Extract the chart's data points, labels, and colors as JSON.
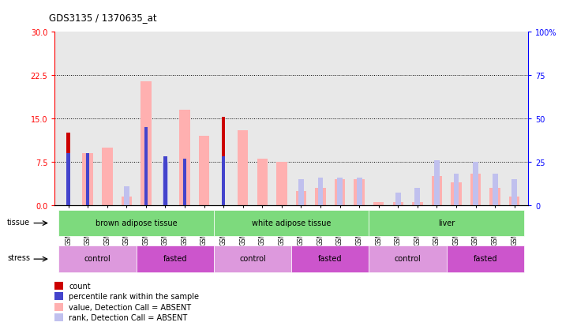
{
  "title": "GDS3135 / 1370635_at",
  "samples": [
    "GSM184414",
    "GSM184415",
    "GSM184416",
    "GSM184417",
    "GSM184418",
    "GSM184419",
    "GSM184420",
    "GSM184421",
    "GSM184422",
    "GSM184423",
    "GSM184424",
    "GSM184425",
    "GSM184426",
    "GSM184427",
    "GSM184428",
    "GSM184429",
    "GSM184430",
    "GSM184431",
    "GSM184432",
    "GSM184433",
    "GSM184434",
    "GSM184435",
    "GSM184436",
    "GSM184437"
  ],
  "count": [
    12.5,
    0,
    0,
    0,
    0,
    0,
    0,
    0,
    15.3,
    0,
    0,
    0,
    0,
    0,
    0,
    0,
    0,
    0,
    0,
    0,
    0,
    0,
    0,
    0
  ],
  "percentile_rank_pct": [
    30,
    30,
    0,
    0,
    45,
    28,
    27,
    0,
    28,
    0,
    0,
    0,
    0,
    0,
    0,
    0,
    0,
    0,
    0,
    0,
    0,
    0,
    0,
    0
  ],
  "value_absent": [
    0,
    9.0,
    10.0,
    1.5,
    21.5,
    0,
    16.5,
    12.0,
    0,
    13.0,
    8.0,
    7.5,
    2.5,
    3.0,
    4.5,
    4.5,
    0.5,
    0.5,
    0.5,
    5.0,
    4.0,
    5.5,
    3.0,
    1.5
  ],
  "rank_absent_pct": [
    0,
    0,
    0,
    11,
    0,
    25,
    0,
    0,
    0,
    0,
    0,
    0,
    15,
    16,
    16,
    16,
    0,
    7,
    10,
    26,
    18,
    25,
    18,
    15
  ],
  "ylim_left": [
    0,
    30
  ],
  "ylim_right": [
    0,
    100
  ],
  "yticks_left": [
    0,
    7.5,
    15,
    22.5,
    30
  ],
  "yticks_right": [
    0,
    25,
    50,
    75,
    100
  ],
  "color_count": "#cc0000",
  "color_percentile": "#4444cc",
  "color_value_absent": "#ffb0b0",
  "color_rank_absent": "#c0c0ee",
  "bg_plot": "#e8e8e8",
  "bg_fig": "#ffffff",
  "tissue_groups": [
    {
      "label": "brown adipose tissue",
      "start": 0,
      "end": 8
    },
    {
      "label": "white adipose tissue",
      "start": 8,
      "end": 16
    },
    {
      "label": "liver",
      "start": 16,
      "end": 24
    }
  ],
  "stress_groups": [
    {
      "label": "control",
      "start": 0,
      "end": 4
    },
    {
      "label": "fasted",
      "start": 4,
      "end": 8
    },
    {
      "label": "control",
      "start": 8,
      "end": 12
    },
    {
      "label": "fasted",
      "start": 12,
      "end": 16
    },
    {
      "label": "control",
      "start": 16,
      "end": 20
    },
    {
      "label": "fasted",
      "start": 20,
      "end": 24
    }
  ],
  "tissue_color": "#7dda7d",
  "stress_color_control": "#cc77cc",
  "stress_color_fasted": "#cc77cc"
}
